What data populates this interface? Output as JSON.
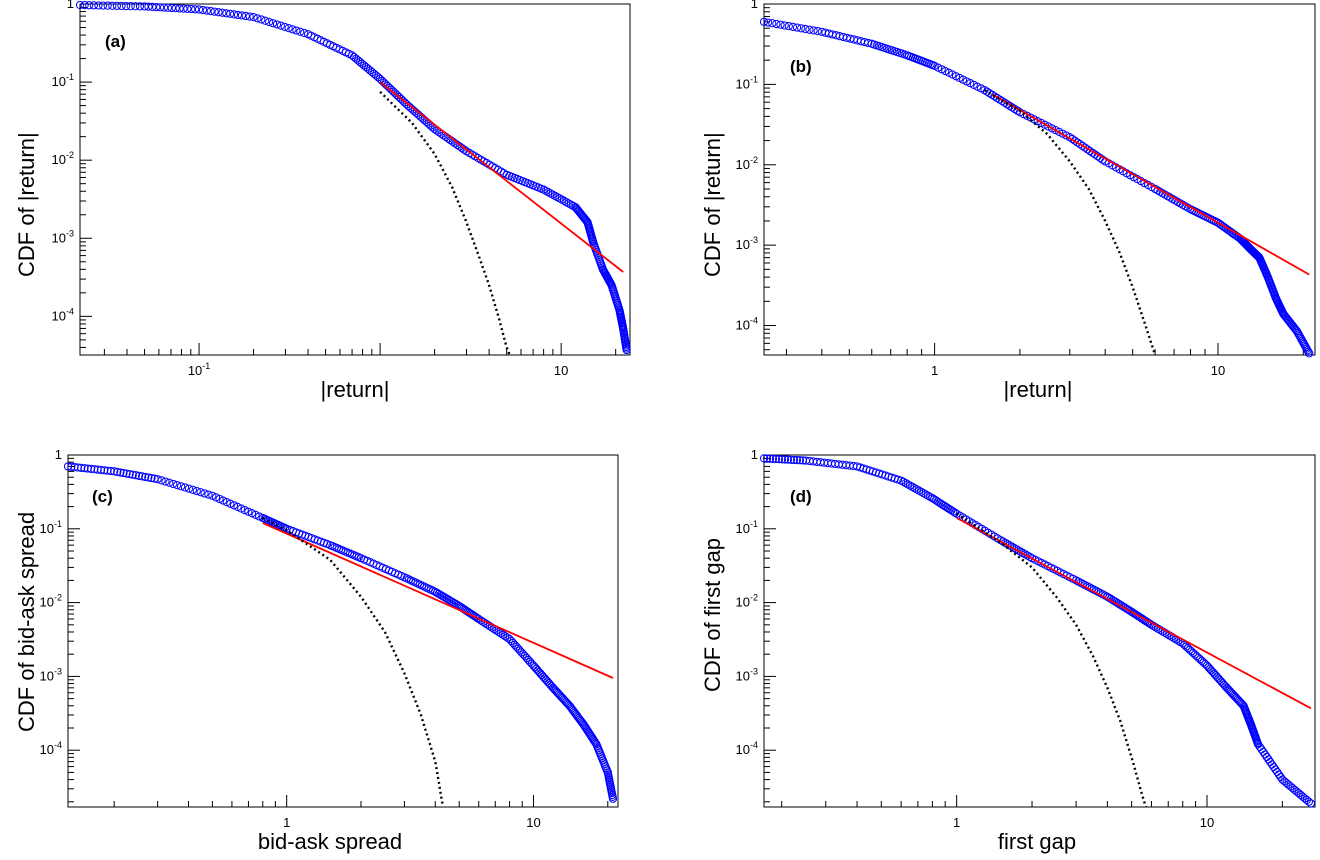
{
  "chart_data": [
    {
      "type": "scatter",
      "panel_label": "(a)",
      "xlabel": "|return|",
      "ylabel": "CDF of |return|",
      "xscale": "log",
      "yscale": "log",
      "xlim": [
        0.022,
        24
      ],
      "ylim": [
        3.2e-05,
        1.0
      ],
      "xtick_labels": [
        {
          "v": 0.1,
          "t": "10",
          "e": "-1"
        },
        {
          "v": 10,
          "t": "10",
          "e": ""
        }
      ],
      "ytick_labels": [
        {
          "v": 1,
          "t": "1",
          "e": ""
        },
        {
          "v": 0.1,
          "t": "10",
          "e": "-1"
        },
        {
          "v": 0.01,
          "t": "10",
          "e": "-2"
        },
        {
          "v": 0.001,
          "t": "10",
          "e": "-3"
        },
        {
          "v": 0.0001,
          "t": "10",
          "e": "-4"
        }
      ],
      "series": [
        {
          "kind": "points",
          "color": "#0000ff",
          "x": [
            0.022,
            0.05,
            0.1,
            0.2,
            0.4,
            0.7,
            1.0,
            1.4,
            2.0,
            3.0,
            5.0,
            8.0,
            12.0,
            14.0,
            15.0,
            17.0,
            19.0,
            21.0,
            22.0,
            23.0
          ],
          "y": [
            0.97,
            0.93,
            0.85,
            0.68,
            0.41,
            0.22,
            0.11,
            0.052,
            0.025,
            0.013,
            0.0065,
            0.0042,
            0.0025,
            0.0016,
            0.0009,
            0.0004,
            0.00025,
            0.00012,
            7e-05,
            3.7e-05
          ]
        },
        {
          "kind": "fit",
          "style": "solid",
          "color": "#ff0000",
          "x": [
            1.0,
            22.0
          ],
          "y": [
            0.1,
            0.00037
          ]
        },
        {
          "kind": "gauss",
          "style": "dotted",
          "color": "#000000",
          "x": [
            1.0,
            1.5,
            2.0,
            2.5,
            3.0,
            3.5,
            4.0,
            4.5,
            5.0,
            5.2
          ],
          "y": [
            0.075,
            0.03,
            0.012,
            0.0045,
            0.0016,
            0.0006,
            0.00025,
            0.0001,
            4e-05,
            3.2e-05
          ]
        }
      ]
    },
    {
      "type": "scatter",
      "panel_label": "(b)",
      "xlabel": "|return|",
      "ylabel": "CDF of |return|",
      "xscale": "log",
      "yscale": "log",
      "xlim": [
        0.25,
        22
      ],
      "ylim": [
        4.3e-05,
        1.0
      ],
      "xtick_labels": [
        {
          "v": 1,
          "t": "1",
          "e": ""
        },
        {
          "v": 10,
          "t": "10",
          "e": ""
        }
      ],
      "ytick_labels": [
        {
          "v": 1,
          "t": "1",
          "e": ""
        },
        {
          "v": 0.1,
          "t": "10",
          "e": "-1"
        },
        {
          "v": 0.01,
          "t": "10",
          "e": "-2"
        },
        {
          "v": 0.001,
          "t": "10",
          "e": "-3"
        },
        {
          "v": 0.0001,
          "t": "10",
          "e": "-4"
        }
      ],
      "series": [
        {
          "kind": "points",
          "color": "#0000ff",
          "x": [
            0.25,
            0.4,
            0.6,
            0.8,
            1.0,
            1.5,
            2.0,
            3.0,
            4.0,
            6.0,
            8.0,
            10.0,
            12.0,
            13.0,
            14.0,
            15.0,
            16.0,
            17.0,
            19.0,
            21.0
          ],
          "y": [
            0.6,
            0.45,
            0.32,
            0.23,
            0.17,
            0.085,
            0.045,
            0.022,
            0.011,
            0.005,
            0.0028,
            0.0019,
            0.0012,
            0.0009,
            0.0007,
            0.0004,
            0.00022,
            0.00014,
            8.5e-05,
            4.5e-05
          ]
        },
        {
          "kind": "fit",
          "style": "solid",
          "color": "#ff0000",
          "x": [
            1.6,
            21.0
          ],
          "y": [
            0.075,
            0.00043
          ]
        },
        {
          "kind": "gauss",
          "style": "dotted",
          "color": "#000000",
          "x": [
            1.5,
            2.0,
            2.5,
            3.0,
            3.5,
            4.0,
            4.5,
            5.0,
            5.5,
            6.0
          ],
          "y": [
            0.085,
            0.047,
            0.024,
            0.011,
            0.005,
            0.002,
            0.0008,
            0.0003,
            0.00011,
            4.3e-05
          ]
        }
      ]
    },
    {
      "type": "scatter",
      "panel_label": "(c)",
      "xlabel": "bid-ask spread",
      "ylabel": "CDF of bid-ask spread",
      "xscale": "log",
      "yscale": "log",
      "xlim": [
        0.13,
        22
      ],
      "ylim": [
        1.7e-05,
        1.0
      ],
      "xtick_labels": [
        {
          "v": 1,
          "t": "1",
          "e": ""
        },
        {
          "v": 10,
          "t": "10",
          "e": ""
        }
      ],
      "ytick_labels": [
        {
          "v": 1,
          "t": "1",
          "e": ""
        },
        {
          "v": 0.1,
          "t": "10",
          "e": "-1"
        },
        {
          "v": 0.01,
          "t": "10",
          "e": "-2"
        },
        {
          "v": 0.001,
          "t": "10",
          "e": "-3"
        },
        {
          "v": 0.0001,
          "t": "10",
          "e": "-4"
        }
      ],
      "series": [
        {
          "kind": "points",
          "color": "#0000ff",
          "x": [
            0.13,
            0.2,
            0.3,
            0.5,
            0.8,
            1.0,
            1.5,
            2.0,
            3.0,
            4.0,
            5.0,
            6.0,
            8.0,
            10.0,
            12.0,
            14.0,
            16.0,
            18.0,
            20.0,
            21.0
          ],
          "y": [
            0.7,
            0.6,
            0.47,
            0.28,
            0.14,
            0.1,
            0.06,
            0.04,
            0.022,
            0.014,
            0.009,
            0.006,
            0.0032,
            0.0014,
            0.0007,
            0.0004,
            0.00022,
            0.00012,
            5e-05,
            2.2e-05
          ]
        },
        {
          "kind": "fit",
          "style": "solid",
          "color": "#ff0000",
          "x": [
            0.8,
            21.0
          ],
          "y": [
            0.12,
            0.00095
          ]
        },
        {
          "kind": "gauss",
          "style": "dotted",
          "color": "#000000",
          "x": [
            0.8,
            1.0,
            1.5,
            2.0,
            2.5,
            3.0,
            3.5,
            4.0,
            4.3
          ],
          "y": [
            0.14,
            0.095,
            0.038,
            0.012,
            0.004,
            0.0011,
            0.0003,
            7e-05,
            1.7e-05
          ]
        }
      ]
    },
    {
      "type": "scatter",
      "panel_label": "(d)",
      "xlabel": "first gap",
      "ylabel": "CDF of first gap",
      "xscale": "log",
      "yscale": "log",
      "xlim": [
        0.17,
        27
      ],
      "ylim": [
        1.7e-05,
        1.0
      ],
      "xtick_labels": [
        {
          "v": 1,
          "t": "1",
          "e": ""
        },
        {
          "v": 10,
          "t": "10",
          "e": ""
        }
      ],
      "ytick_labels": [
        {
          "v": 1,
          "t": "1",
          "e": ""
        },
        {
          "v": 0.1,
          "t": "10",
          "e": "-1"
        },
        {
          "v": 0.01,
          "t": "10",
          "e": "-2"
        },
        {
          "v": 0.001,
          "t": "10",
          "e": "-3"
        },
        {
          "v": 0.0001,
          "t": "10",
          "e": "-4"
        }
      ],
      "series": [
        {
          "kind": "points",
          "color": "#0000ff",
          "x": [
            0.17,
            0.25,
            0.4,
            0.6,
            0.8,
            1.0,
            1.5,
            2.0,
            3.0,
            4.0,
            5.0,
            6.0,
            8.0,
            10.0,
            12.0,
            14.0,
            15.0,
            16.0,
            20.0,
            26.0
          ],
          "y": [
            0.9,
            0.84,
            0.7,
            0.45,
            0.26,
            0.16,
            0.07,
            0.04,
            0.02,
            0.012,
            0.0075,
            0.005,
            0.0028,
            0.0014,
            0.0007,
            0.0004,
            0.00022,
            0.00012,
            4e-05,
            1.9e-05
          ]
        },
        {
          "kind": "fit",
          "style": "solid",
          "color": "#ff0000",
          "x": [
            1.0,
            26.0
          ],
          "y": [
            0.14,
            0.00037
          ]
        },
        {
          "kind": "gauss",
          "style": "dotted",
          "color": "#000000",
          "x": [
            1.0,
            1.5,
            2.0,
            2.5,
            3.0,
            3.5,
            4.0,
            4.5,
            5.0,
            5.5,
            5.7
          ],
          "y": [
            0.16,
            0.065,
            0.03,
            0.012,
            0.005,
            0.0019,
            0.0007,
            0.00025,
            8e-05,
            2.5e-05,
            1.7e-05
          ]
        }
      ]
    }
  ]
}
